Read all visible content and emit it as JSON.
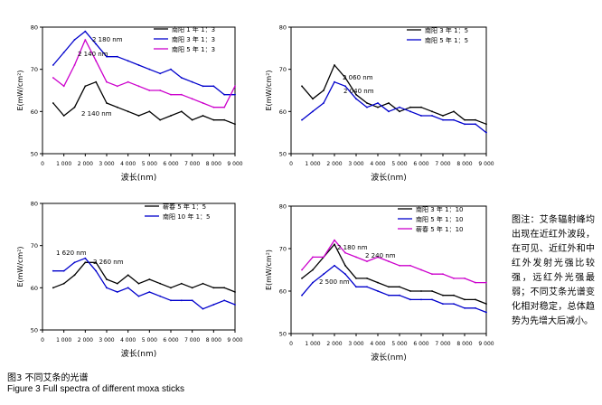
{
  "figure": {
    "caption_cn": "图3  不同艾条的光谱",
    "caption_en": "Figure 3   Full spectra of different moxa sticks",
    "note": "图注：艾条辐射峰均出现在近红外波段，在可见、近红外和中红外发射光强比较强，远红外光强最弱；不同艾条光谱变化相对稳定，总体趋势为先增大后减小。"
  },
  "chart_data": [
    {
      "type": "line",
      "xlabel": "波长(nm)",
      "ylabel": "E(mW/cm²)",
      "xlim": [
        0,
        9000
      ],
      "ylim": [
        50,
        80
      ],
      "xticks": [
        0,
        1000,
        2000,
        3000,
        4000,
        5000,
        6000,
        7000,
        8000,
        9000
      ],
      "xtick_labels": [
        "0",
        "1 000",
        "2 000",
        "3 000",
        "4 000",
        "5 000",
        "6 000",
        "7 000",
        "8 000",
        "9 000"
      ],
      "yticks": [
        50,
        60,
        70,
        80
      ],
      "legend_position": "top-right",
      "series": [
        {
          "name": "南阳 1 年 1：3",
          "color": "#000000",
          "x": [
            500,
            1000,
            1500,
            2000,
            2500,
            3000,
            3500,
            4000,
            4500,
            5000,
            5500,
            6000,
            6500,
            7000,
            7500,
            8000,
            8500,
            9000
          ],
          "y": [
            62,
            59,
            61,
            66,
            67,
            62,
            61,
            60,
            59,
            60,
            58,
            59,
            60,
            58,
            59,
            58,
            58,
            57
          ]
        },
        {
          "name": "南阳 3 年 1：3",
          "color": "#0000cc",
          "x": [
            500,
            1000,
            1500,
            2000,
            2500,
            3000,
            3500,
            4000,
            4500,
            5000,
            5500,
            6000,
            6500,
            7000,
            7500,
            8000,
            8500,
            9000
          ],
          "y": [
            71,
            74,
            77,
            79,
            76,
            73,
            73,
            72,
            71,
            70,
            69,
            70,
            68,
            67,
            66,
            66,
            64,
            64
          ]
        },
        {
          "name": "南阳 5 年 1：3",
          "color": "#cc00cc",
          "x": [
            500,
            1000,
            1500,
            2000,
            2500,
            3000,
            3500,
            4000,
            4500,
            5000,
            5500,
            6000,
            6500,
            7000,
            7500,
            8000,
            8500,
            9000
          ],
          "y": [
            68,
            66,
            71,
            77,
            72,
            67,
            66,
            67,
            66,
            65,
            65,
            64,
            64,
            63,
            62,
            61,
            61,
            66
          ]
        }
      ],
      "annotations": [
        "2 180 nm",
        "2 140 nm",
        "2 140 nm"
      ]
    },
    {
      "type": "line",
      "xlabel": "波长(nm)",
      "ylabel": "E(mW/cm²)",
      "xlim": [
        0,
        9000
      ],
      "ylim": [
        50,
        80
      ],
      "xticks": [
        0,
        1000,
        2000,
        3000,
        4000,
        5000,
        6000,
        7000,
        8000,
        9000
      ],
      "xtick_labels": [
        "0",
        "1 000",
        "2 000",
        "3 000",
        "4 000",
        "5 000",
        "6 000",
        "7 000",
        "8 000",
        "9 000"
      ],
      "yticks": [
        50,
        60,
        70,
        80
      ],
      "legend_position": "top-right",
      "series": [
        {
          "name": "南阳 3 年 1：5",
          "color": "#000000",
          "x": [
            500,
            1000,
            1500,
            2000,
            2500,
            3000,
            3500,
            4000,
            4500,
            5000,
            5500,
            6000,
            6500,
            7000,
            7500,
            8000,
            8500,
            9000
          ],
          "y": [
            66,
            63,
            65,
            71,
            68,
            64,
            62,
            61,
            62,
            60,
            61,
            61,
            60,
            59,
            60,
            58,
            58,
            57
          ]
        },
        {
          "name": "南阳 5 年 1：5",
          "color": "#0000cc",
          "x": [
            500,
            1000,
            1500,
            2000,
            2500,
            3000,
            3500,
            4000,
            4500,
            5000,
            5500,
            6000,
            6500,
            7000,
            7500,
            8000,
            8500,
            9000
          ],
          "y": [
            58,
            60,
            62,
            67,
            66,
            63,
            61,
            62,
            60,
            61,
            60,
            59,
            59,
            58,
            58,
            57,
            57,
            55
          ]
        }
      ],
      "annotations": [
        "2 060 nm",
        "2 040 nm"
      ]
    },
    {
      "type": "line",
      "xlabel": "波长(nm)",
      "ylabel": "E(mW/cm²)",
      "xlim": [
        0,
        9000
      ],
      "ylim": [
        50,
        80
      ],
      "xticks": [
        0,
        1000,
        2000,
        3000,
        4000,
        5000,
        6000,
        7000,
        8000,
        9000
      ],
      "xtick_labels": [
        "0",
        "1 000",
        "2 000",
        "3 000",
        "4 000",
        "5 000",
        "6 000",
        "7 000",
        "8 000",
        "9 000"
      ],
      "yticks": [
        50,
        60,
        70,
        80
      ],
      "legend_position": "top-right",
      "series": [
        {
          "name": "蕲春 5 年 1：5",
          "color": "#000000",
          "x": [
            500,
            1000,
            1500,
            2000,
            2500,
            3000,
            3500,
            4000,
            4500,
            5000,
            5500,
            6000,
            6500,
            7000,
            7500,
            8000,
            8500,
            9000
          ],
          "y": [
            60,
            61,
            63,
            66,
            66,
            62,
            61,
            63,
            61,
            62,
            61,
            60,
            61,
            60,
            61,
            60,
            60,
            59
          ]
        },
        {
          "name": "南阳 10 年 1：5",
          "color": "#0000cc",
          "x": [
            500,
            1000,
            1500,
            2000,
            2500,
            3000,
            3500,
            4000,
            4500,
            5000,
            5500,
            6000,
            6500,
            7000,
            7500,
            8000,
            8500,
            9000
          ],
          "y": [
            64,
            64,
            66,
            67,
            64,
            60,
            59,
            60,
            58,
            59,
            58,
            57,
            57,
            57,
            55,
            56,
            57,
            56
          ]
        }
      ],
      "annotations": [
        "1 620 nm",
        "2 260 nm"
      ]
    },
    {
      "type": "line",
      "xlabel": "波长(nm)",
      "ylabel": "E(mW/cm²)",
      "xlim": [
        0,
        9000
      ],
      "ylim": [
        50,
        80
      ],
      "xticks": [
        0,
        1000,
        2000,
        3000,
        4000,
        5000,
        6000,
        7000,
        8000,
        9000
      ],
      "xtick_labels": [
        "0",
        "1 000",
        "2 000",
        "3 000",
        "4 000",
        "5 000",
        "6 000",
        "7 000",
        "8 000",
        "9 000"
      ],
      "yticks": [
        50,
        60,
        70,
        80
      ],
      "legend_position": "top-right",
      "series": [
        {
          "name": "南阳 3 年 1：10",
          "color": "#000000",
          "x": [
            500,
            1000,
            1500,
            2000,
            2500,
            3000,
            3500,
            4000,
            4500,
            5000,
            5500,
            6000,
            6500,
            7000,
            7500,
            8000,
            8500,
            9000
          ],
          "y": [
            63,
            65,
            68,
            71,
            66,
            63,
            63,
            62,
            61,
            61,
            60,
            60,
            60,
            59,
            59,
            58,
            58,
            57
          ]
        },
        {
          "name": "南阳 5 年 1：10",
          "color": "#0000cc",
          "x": [
            500,
            1000,
            1500,
            2000,
            2500,
            3000,
            3500,
            4000,
            4500,
            5000,
            5500,
            6000,
            6500,
            7000,
            7500,
            8000,
            8500,
            9000
          ],
          "y": [
            59,
            62,
            64,
            66,
            64,
            61,
            61,
            60,
            59,
            59,
            58,
            58,
            58,
            57,
            57,
            56,
            56,
            55
          ]
        },
        {
          "name": "蕲春 5 年 1：10",
          "color": "#cc00cc",
          "x": [
            500,
            1000,
            1500,
            2000,
            2500,
            3000,
            3500,
            4000,
            4500,
            5000,
            5500,
            6000,
            6500,
            7000,
            7500,
            8000,
            8500,
            9000
          ],
          "y": [
            65,
            68,
            68,
            72,
            69,
            68,
            67,
            68,
            67,
            66,
            66,
            65,
            64,
            64,
            63,
            63,
            62,
            62
          ]
        }
      ],
      "annotations": [
        "2 180 nm",
        "2 240 nm",
        "2 500 nm"
      ]
    }
  ]
}
